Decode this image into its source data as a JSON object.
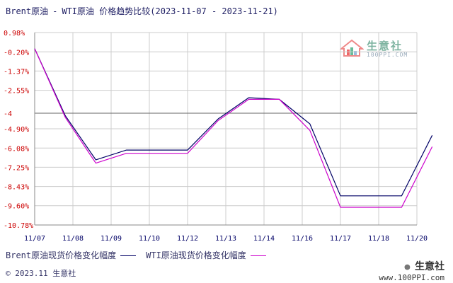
{
  "title": {
    "series_a": "Brent原油",
    "dash": "-",
    "series_b": "WTI原油",
    "rest": "价格趋势比较(2023-11-07 - 2023-11-21)"
  },
  "watermark": {
    "text": "生意社",
    "url": "100PPI.COM"
  },
  "legend": {
    "brent_label": "Brent原油现货价格变化幅度",
    "wti_label": "WTI原油现货价格变化幅度"
  },
  "footer": {
    "copyright": "© 2023.11 生意社",
    "wechat_brand": "生意社",
    "site": "www.100PPI.com"
  },
  "colors": {
    "brent": "#000066",
    "wti": "#cc00cc",
    "grid": "#cccccc",
    "axis": "#888888",
    "ylabel": "#cc0000",
    "xlabel": "#000066"
  },
  "chart_data": {
    "type": "line",
    "title": "Brent原油 - WTI原油 价格趋势比较(2023-11-07 - 2023-11-21)",
    "x": [
      "11/07",
      "11/08",
      "11/09",
      "11/10",
      "11/12",
      "11/13",
      "11/14",
      "11/16",
      "11/17",
      "11/18",
      "11/20"
    ],
    "y_ticks": [
      "0.98%",
      "-0.20%",
      "-1.37%",
      "-2.55%",
      "-4",
      "-4.90%",
      "-6.08%",
      "-7.25%",
      "-8.43%",
      "-9.60%",
      "-10.78%"
    ],
    "y_tick_values": [
      0.98,
      -0.2,
      -1.37,
      -2.55,
      -3.95,
      -4.9,
      -6.08,
      -7.25,
      -8.43,
      -9.6,
      -10.78
    ],
    "ylim": [
      -10.78,
      0.98
    ],
    "reference_line": -3.95,
    "grid": true,
    "legend_position": "bottom",
    "series": [
      {
        "name": "Brent原油现货价格变化幅度",
        "color": "#000066",
        "points": [
          [
            0,
            0
          ],
          [
            0.8,
            -4.1
          ],
          [
            1.6,
            -6.8
          ],
          [
            2.4,
            -6.2
          ],
          [
            3.2,
            -6.2
          ],
          [
            4.0,
            -6.2
          ],
          [
            4.8,
            -4.3
          ],
          [
            5.6,
            -3.0
          ],
          [
            6.4,
            -3.1
          ],
          [
            7.2,
            -4.6
          ],
          [
            8.0,
            -9.0
          ],
          [
            8.8,
            -9.0
          ],
          [
            9.6,
            -9.0
          ],
          [
            10.4,
            -5.3
          ]
        ]
      },
      {
        "name": "WTI原油现货价格变化幅度",
        "color": "#cc00cc",
        "points": [
          [
            0,
            0
          ],
          [
            0.8,
            -4.2
          ],
          [
            1.6,
            -7.0
          ],
          [
            2.4,
            -6.4
          ],
          [
            3.2,
            -6.4
          ],
          [
            4.0,
            -6.4
          ],
          [
            4.8,
            -4.4
          ],
          [
            5.6,
            -3.1
          ],
          [
            6.4,
            -3.1
          ],
          [
            7.2,
            -5.0
          ],
          [
            8.0,
            -9.7
          ],
          [
            8.8,
            -9.7
          ],
          [
            9.6,
            -9.7
          ],
          [
            10.4,
            -6.0
          ]
        ]
      }
    ]
  }
}
